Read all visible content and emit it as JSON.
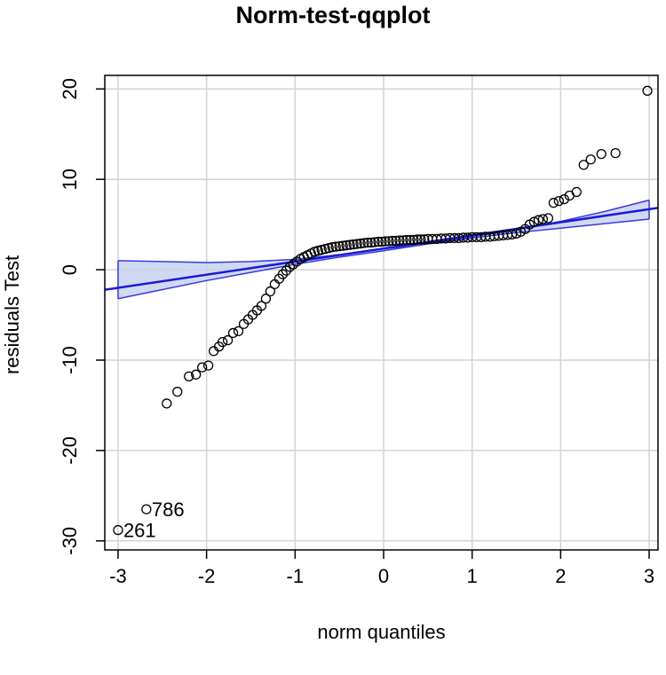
{
  "chart_data": {
    "type": "scatter",
    "title": "Norm-test-qqplot",
    "xlabel": "norm quantiles",
    "ylabel": "residuals Test",
    "xlim": [
      -3.15,
      3.1
    ],
    "ylim": [
      -31,
      21.5
    ],
    "xticks": [
      -3,
      -2,
      -1,
      0,
      1,
      2,
      3
    ],
    "yticks": [
      -30,
      -20,
      -10,
      0,
      10,
      20
    ],
    "grid": true,
    "colors": {
      "points": "#000000",
      "line": "#1a1ad6",
      "band_fill": "#c8d2f0",
      "band_edge": "#3a3ae0",
      "grid": "#d3d3d3"
    },
    "reference_line": {
      "intercept": 2.35,
      "slope": 1.45
    },
    "confidence_band": {
      "x": [
        -3.0,
        -2.5,
        -2.0,
        -1.5,
        -1.0,
        -0.5,
        0.0,
        0.5,
        1.0,
        1.5,
        2.0,
        2.5,
        3.0
      ],
      "lower": [
        -3.2,
        -2.2,
        -1.2,
        -0.3,
        0.6,
        1.4,
        2.1,
        2.85,
        3.5,
        4.1,
        4.6,
        5.1,
        5.6
      ],
      "upper": [
        1.0,
        0.9,
        0.8,
        0.9,
        1.15,
        1.65,
        2.3,
        2.9,
        3.65,
        4.45,
        5.35,
        6.45,
        7.7
      ]
    },
    "labeled_points": [
      {
        "x": -3.0,
        "y": -28.8,
        "label": "261"
      },
      {
        "x": -2.68,
        "y": -26.5,
        "label": "786"
      }
    ],
    "points_x": [
      -2.45,
      -2.33,
      -2.2,
      -2.12,
      -2.05,
      -1.98,
      -1.92,
      -1.86,
      -1.82,
      -1.76,
      -1.7,
      -1.64,
      -1.58,
      -1.53,
      -1.48,
      -1.43,
      -1.38,
      -1.33,
      -1.28,
      -1.23,
      -1.18,
      -1.14,
      -1.1,
      -1.06,
      -1.02,
      -0.98,
      -0.94,
      -0.9,
      -0.86,
      -0.82,
      -0.78,
      -0.74,
      -0.7,
      -0.66,
      -0.62,
      -0.58,
      -0.54,
      -0.5,
      -0.46,
      -0.42,
      -0.38,
      -0.34,
      -0.3,
      -0.26,
      -0.22,
      -0.18,
      -0.14,
      -0.1,
      -0.06,
      -0.02,
      0.02,
      0.06,
      0.1,
      0.14,
      0.18,
      0.22,
      0.26,
      0.3,
      0.34,
      0.38,
      0.42,
      0.46,
      0.5,
      0.55,
      0.6,
      0.65,
      0.7,
      0.75,
      0.8,
      0.85,
      0.9,
      0.95,
      1.0,
      1.05,
      1.1,
      1.15,
      1.2,
      1.25,
      1.3,
      1.35,
      1.4,
      1.45,
      1.5,
      1.55,
      1.6,
      1.65,
      1.7,
      1.75,
      1.8,
      1.86,
      1.92,
      1.98,
      2.04,
      2.1,
      2.18,
      2.26,
      2.34,
      2.46,
      2.62,
      2.98
    ],
    "points_y": [
      -14.8,
      -13.5,
      -11.8,
      -11.6,
      -10.8,
      -10.6,
      -9.0,
      -8.5,
      -8.0,
      -7.8,
      -7.0,
      -6.8,
      -6.0,
      -5.5,
      -5.0,
      -4.5,
      -4.0,
      -3.2,
      -2.4,
      -1.6,
      -1.0,
      -0.5,
      -0.1,
      0.3,
      0.6,
      0.9,
      1.2,
      1.4,
      1.6,
      1.8,
      2.0,
      2.1,
      2.2,
      2.3,
      2.4,
      2.5,
      2.55,
      2.6,
      2.65,
      2.7,
      2.75,
      2.8,
      2.85,
      2.9,
      2.95,
      3.0,
      3.0,
      3.05,
      3.1,
      3.1,
      3.15,
      3.15,
      3.2,
      3.2,
      3.25,
      3.25,
      3.3,
      3.3,
      3.3,
      3.35,
      3.35,
      3.35,
      3.4,
      3.4,
      3.4,
      3.45,
      3.45,
      3.5,
      3.5,
      3.5,
      3.55,
      3.55,
      3.6,
      3.6,
      3.6,
      3.65,
      3.65,
      3.7,
      3.75,
      3.8,
      3.85,
      3.9,
      4.0,
      4.2,
      4.5,
      5.0,
      5.3,
      5.5,
      5.6,
      5.7,
      7.4,
      7.6,
      7.8,
      8.2,
      8.6,
      11.6,
      12.2,
      12.8,
      12.9,
      19.8
    ]
  }
}
